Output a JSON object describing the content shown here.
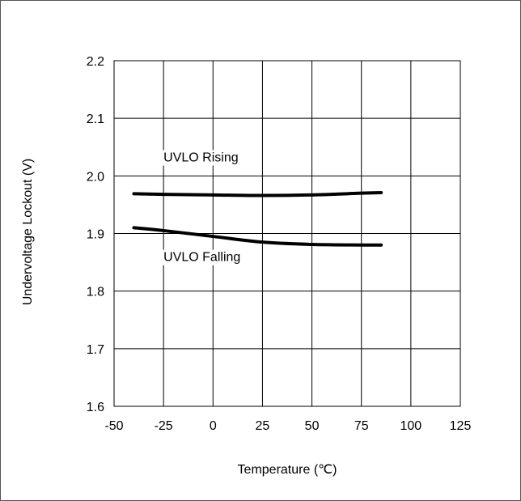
{
  "chart_data": {
    "type": "line",
    "title": "",
    "xlabel": "Temperature (℃)",
    "ylabel": "Undervoltage Lockout (V)",
    "xlim": [
      -50,
      125
    ],
    "ylim": [
      1.6,
      2.2
    ],
    "xticks": [
      -50,
      -25,
      0,
      25,
      50,
      75,
      100,
      125
    ],
    "xtick_labels": [
      "-50",
      "-25",
      "0",
      "25",
      "50",
      "75",
      "100",
      "125"
    ],
    "yticks": [
      1.6,
      1.7,
      1.8,
      1.9,
      2.0,
      2.1,
      2.2
    ],
    "ytick_labels": [
      "1.6",
      "1.7",
      "1.8",
      "1.9",
      "2.0",
      "2.1",
      "2.2"
    ],
    "grid": true,
    "legend": "none",
    "colors": {
      "series": "#000000",
      "grid": "#000000",
      "axis": "#000000",
      "background": "#ffffff"
    },
    "series": [
      {
        "name": "UVLO Rising",
        "x": [
          -40,
          -25,
          0,
          25,
          50,
          75,
          85
        ],
        "y": [
          1.969,
          1.968,
          1.967,
          1.966,
          1.967,
          1.97,
          1.971
        ]
      },
      {
        "name": "UVLO Falling",
        "x": [
          -40,
          -25,
          0,
          25,
          50,
          75,
          85
        ],
        "y": [
          1.91,
          1.905,
          1.895,
          1.885,
          1.881,
          1.88,
          1.88
        ]
      }
    ],
    "annotations": [
      {
        "text": "UVLO Rising",
        "x": -25,
        "y": 2.025
      },
      {
        "text": "UVLO Falling",
        "x": -25,
        "y": 1.852
      }
    ]
  }
}
